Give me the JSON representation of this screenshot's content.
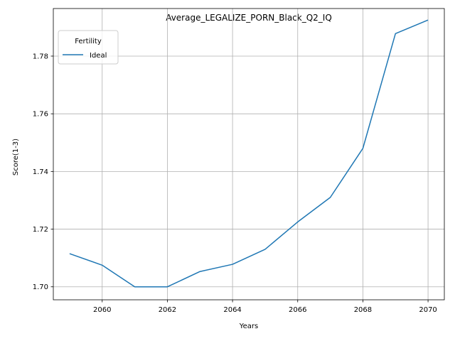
{
  "chart_data": {
    "type": "line",
    "title": "Average_LEGALIZE_PORN_Black_Q2_IQ",
    "xlabel": "Years",
    "ylabel": "Score(1-3)",
    "xlim": [
      2058.5,
      2070.5
    ],
    "ylim": [
      1.6955,
      1.7965
    ],
    "xticks": [
      2060,
      2062,
      2064,
      2066,
      2068,
      2070
    ],
    "yticks": [
      1.7,
      1.72,
      1.74,
      1.76,
      1.78
    ],
    "xtick_labels": [
      "2060",
      "2062",
      "2064",
      "2066",
      "2068",
      "2070"
    ],
    "ytick_labels": [
      "1.70",
      "1.72",
      "1.74",
      "1.76",
      "1.78"
    ],
    "grid": true,
    "legend": {
      "title": "Fertility",
      "position": "top-left"
    },
    "series": [
      {
        "name": "Ideal",
        "color": "#1f77b4",
        "x": [
          2059,
          2060,
          2061,
          2062,
          2063,
          2064,
          2065,
          2066,
          2067,
          2068,
          2069,
          2070
        ],
        "y": [
          1.7115,
          1.7075,
          1.7,
          1.7,
          1.7053,
          1.7078,
          1.713,
          1.7225,
          1.731,
          1.748,
          1.7878,
          1.7925
        ]
      }
    ]
  }
}
